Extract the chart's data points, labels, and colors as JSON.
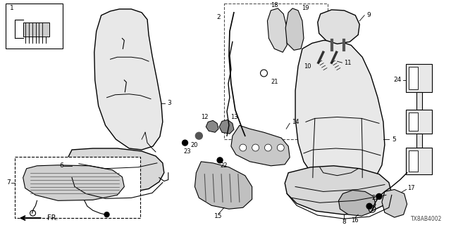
{
  "diagram_code": "TX8AB4002",
  "background_color": "#ffffff",
  "figsize": [
    6.4,
    3.2
  ],
  "dpi": 100
}
